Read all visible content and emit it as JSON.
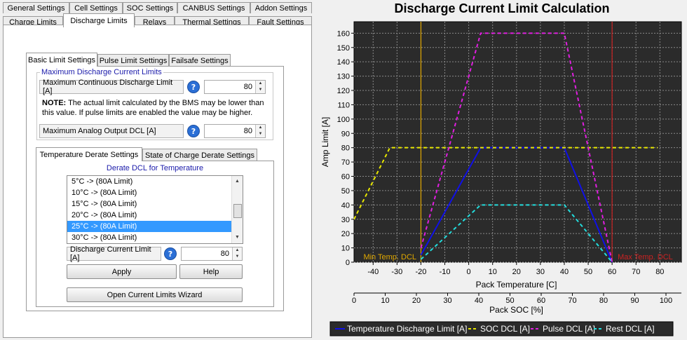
{
  "top_tabs_row1": [
    "General Settings",
    "Cell Settings",
    "SOC Settings",
    "CANBUS Settings",
    "Addon Settings"
  ],
  "top_tabs_row2": [
    "Charge Limits",
    "Discharge Limits",
    "Relays",
    "Thermal Settings",
    "Fault Settings"
  ],
  "sub_tabs": [
    "Basic Limit Settings",
    "Pulse Limit Settings",
    "Failsafe Settings"
  ],
  "max_group": {
    "title": "Maximum Discharge Current Limits",
    "cont_label": "Maximum Continuous Discharge Limit [A]",
    "cont_value": "80",
    "note_bold": "NOTE:",
    "note_text": " The actual limit calculated by the BMS may be lower than this value. If pulse limits are enabled the value may be higher.",
    "analog_label": "Maximum Analog Output DCL [A]",
    "analog_value": "80"
  },
  "derate_tabs": [
    "Temperature Derate Settings",
    "State of Charge Derate Settings"
  ],
  "derate": {
    "title": "Derate DCL for Temperature",
    "items": [
      "5°C -> (80A Limit)",
      "10°C -> (80A Limit)",
      "15°C -> (80A Limit)",
      "20°C -> (80A Limit)",
      "25°C -> (80A Limit)",
      "30°C -> (80A Limit)"
    ],
    "selected_index": 4,
    "limit_label": "Discharge Current Limit [A]",
    "limit_value": "80"
  },
  "buttons": {
    "apply": "Apply",
    "help": "Help",
    "wizard": "Open Current Limits Wizard"
  },
  "help_glyph": "?",
  "chart_data": {
    "type": "line",
    "title": "Discharge Current Limit Calculation",
    "ylabel": "Amp Limit [A]",
    "xlabel": "Pack Temperature [C]",
    "x2label": "Pack SOC [%]",
    "xlim": [
      -48,
      89
    ],
    "ylim": [
      0,
      168
    ],
    "x_ticks": [
      -40,
      -30,
      -20,
      -10,
      0,
      10,
      20,
      30,
      40,
      50,
      60,
      70,
      80
    ],
    "x_tick_labels": [
      "-40",
      "-30",
      "-20",
      "-10",
      "0",
      "10",
      "20",
      "30",
      "40",
      "50",
      "60",
      "70",
      "80"
    ],
    "y_ticks": [
      0,
      10,
      20,
      30,
      40,
      50,
      60,
      70,
      80,
      90,
      100,
      110,
      120,
      130,
      140,
      150,
      160
    ],
    "y_tick_labels": [
      "0",
      "10",
      "20",
      "30",
      "40",
      "50",
      "60",
      "70",
      "80",
      "90",
      "100",
      "110",
      "120",
      "130",
      "140",
      "150",
      "160"
    ],
    "soc_ticks": [
      0,
      10,
      20,
      30,
      40,
      50,
      60,
      70,
      80,
      90,
      100
    ],
    "soc_tick_labels": [
      "0",
      "10",
      "20",
      "30",
      "40",
      "50",
      "60",
      "70",
      "80",
      "90",
      "100"
    ],
    "grid": true,
    "background": "#2b2b2b",
    "markers": [
      {
        "x": -20,
        "label": "Min Temp. DCL",
        "color": "#e0a800"
      },
      {
        "x": 60,
        "label": "Max Temp. DCL",
        "color": "#cc2222"
      }
    ],
    "series": [
      {
        "name": "Temperature Discharge Limit [A]",
        "color": "#1010e6",
        "dash": false,
        "x": [
          -20,
          5,
          40,
          60
        ],
        "y": [
          5,
          80,
          80,
          0
        ]
      },
      {
        "name": "SOC DCL [A]",
        "color": "#e8e800",
        "dash": true,
        "x": [
          -48,
          -33,
          79
        ],
        "y": [
          30,
          80,
          80
        ]
      },
      {
        "name": "Pulse DCL [A]",
        "color": "#e01ee0",
        "dash": true,
        "x": [
          -20,
          5,
          40,
          60
        ],
        "y": [
          10,
          160,
          160,
          0
        ]
      },
      {
        "name": "Rest DCL [A]",
        "color": "#22dddd",
        "dash": true,
        "x": [
          -20,
          5,
          40,
          60
        ],
        "y": [
          2,
          40,
          40,
          0
        ]
      }
    ],
    "legend_position": "bottom"
  }
}
